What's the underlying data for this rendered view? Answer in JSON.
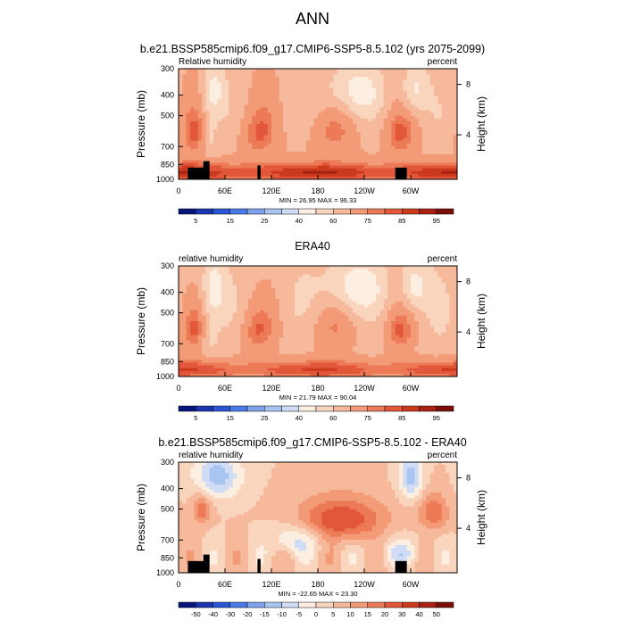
{
  "figure_title": "ANN",
  "colors": {
    "land_mask": "#000000",
    "frame": "#000000"
  },
  "chart_data": [
    {
      "type": "heatmap",
      "title": "b.e21.BSSP585cmip6.f09_g17.CMIP6-SSP5-8.5.102 (yrs 2075-2099)",
      "variable_label": "Relative humidity",
      "units_label": "percent",
      "ylabel": "Pressure (mb)",
      "y2label": "Height (km)",
      "xticks": [
        "0",
        "60E",
        "120E",
        "180",
        "120W",
        "60W"
      ],
      "yticks": [
        "300",
        "400",
        "500",
        "700",
        "850",
        "1000"
      ],
      "y2ticks": [
        "8",
        "4"
      ],
      "ylim": [
        1000,
        300
      ],
      "xlim_deg_east": [
        0,
        360
      ],
      "min_max_label": "MIN = 26.95  MAX = 96.33",
      "colorbar": {
        "levels": [
          "5",
          "15",
          "25",
          "40",
          "60",
          "75",
          "85",
          "95"
        ],
        "colors": [
          "#08157a",
          "#1b35b0",
          "#2a56d6",
          "#4a7ae8",
          "#7fa2ec",
          "#a9c4f1",
          "#cfdcf3",
          "#fdeee2",
          "#f9d5bd",
          "#f6b99b",
          "#f39a77",
          "#ec7a56",
          "#e2573a",
          "#cc3a1e",
          "#a82214",
          "#7a0f0a"
        ]
      },
      "contour_levels": [
        1,
        5,
        10,
        15,
        20,
        25,
        30,
        40,
        50,
        60,
        70,
        75,
        80,
        85,
        90,
        95
      ],
      "field_model": {
        "sign": 1,
        "base": 58,
        "low_amp": 28,
        "mid_amp": 14,
        "gain": 1.0
      },
      "mask": true
    },
    {
      "type": "heatmap",
      "title": "ERA40",
      "variable_label": "relative humidity",
      "units_label": "percent",
      "ylabel": "Pressure (mb)",
      "y2label": "Height (km)",
      "xticks": [
        "0",
        "60E",
        "120E",
        "180",
        "120W",
        "60W"
      ],
      "yticks": [
        "300",
        "400",
        "500",
        "700",
        "850",
        "1000"
      ],
      "y2ticks": [
        "8",
        "4"
      ],
      "ylim": [
        1000,
        300
      ],
      "xlim_deg_east": [
        0,
        360
      ],
      "min_max_label": "MIN = 21.79  MAX = 90.04",
      "colorbar": {
        "levels": [
          "5",
          "15",
          "25",
          "40",
          "60",
          "75",
          "85",
          "95"
        ],
        "colors": [
          "#08157a",
          "#1b35b0",
          "#2a56d6",
          "#4a7ae8",
          "#7fa2ec",
          "#a9c4f1",
          "#cfdcf3",
          "#fdeee2",
          "#f9d5bd",
          "#f6b99b",
          "#f39a77",
          "#ec7a56",
          "#e2573a",
          "#cc3a1e",
          "#a82214",
          "#7a0f0a"
        ]
      },
      "contour_levels": [
        1,
        5,
        10,
        15,
        20,
        25,
        30,
        40,
        50,
        60,
        70,
        75,
        80,
        85,
        90,
        95
      ],
      "field_model": {
        "sign": 1,
        "base": 55,
        "low_amp": 26,
        "mid_amp": 16,
        "gain": 1.0
      },
      "mask": false
    },
    {
      "type": "heatmap",
      "title": "b.e21.BSSP585cmip6.f09_g17.CMIP6-SSP5-8.5.102 - ERA40",
      "variable_label": "relative humidity",
      "units_label": "percent",
      "ylabel": "Pressure (mb)",
      "y2label": "Height (km)",
      "xticks": [
        "0",
        "60E",
        "120E",
        "180",
        "120W",
        "60W"
      ],
      "yticks": [
        "300",
        "400",
        "500",
        "700",
        "850",
        "1000"
      ],
      "y2ticks": [
        "8",
        "4"
      ],
      "ylim": [
        1000,
        300
      ],
      "xlim_deg_east": [
        0,
        360
      ],
      "min_max_label": "MIN = -22.65  MAX = 23.30",
      "colorbar": {
        "levels": [
          "-50",
          "-40",
          "-30",
          "-20",
          "-15",
          "-10",
          "-5",
          "0",
          "5",
          "10",
          "15",
          "20",
          "30",
          "40",
          "50"
        ],
        "colors": [
          "#08157a",
          "#1b35b0",
          "#2a56d6",
          "#4a7ae8",
          "#7fa2ec",
          "#a9c4f1",
          "#cfdcf3",
          "#fdeee2",
          "#f9d5bd",
          "#f6b99b",
          "#f39a77",
          "#ec7a56",
          "#e2573a",
          "#cc3a1e",
          "#a82214",
          "#7a0f0a"
        ]
      },
      "contour_levels": [
        -60,
        -50,
        -40,
        -30,
        -20,
        -15,
        -10,
        -5,
        0,
        5,
        10,
        15,
        20,
        30,
        40,
        50
      ],
      "field_model": {
        "sign": 0,
        "base": 0,
        "low_amp": 0,
        "mid_amp": 0,
        "gain": 1.0
      },
      "mask": true
    }
  ]
}
